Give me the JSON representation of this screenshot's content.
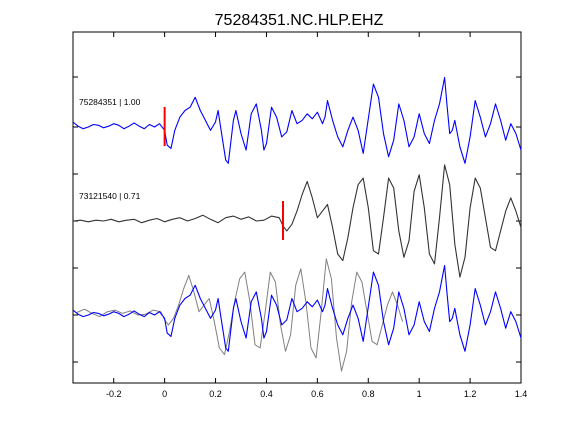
{
  "chart_data": {
    "type": "line",
    "title": "75284351.NC.HLP.EHZ",
    "xlim": [
      -0.36,
      1.4
    ],
    "x_ticks": [
      "-0.2",
      "0",
      "0.2",
      "0.4",
      "0.6",
      "0.8",
      "1",
      "1.2",
      "1.4"
    ],
    "x_tick_values": [
      -0.2,
      0,
      0.2,
      0.4,
      0.6,
      0.8,
      1.0,
      1.2,
      1.4
    ],
    "grid": false,
    "traces": [
      {
        "label": "75284351 | 1.00",
        "color": "#0000ff",
        "pick_time": 0.0,
        "pick_color": "#ff0000",
        "values": [
          [
            -0.36,
            0.3
          ],
          [
            -0.34,
            0.05
          ],
          [
            -0.32,
            -0.1
          ],
          [
            -0.3,
            0.0
          ],
          [
            -0.28,
            0.15
          ],
          [
            -0.26,
            0.1
          ],
          [
            -0.24,
            -0.05
          ],
          [
            -0.22,
            0.05
          ],
          [
            -0.2,
            0.2
          ],
          [
            -0.18,
            0.1
          ],
          [
            -0.16,
            -0.1
          ],
          [
            -0.14,
            0.05
          ],
          [
            -0.12,
            0.25
          ],
          [
            -0.1,
            0.05
          ],
          [
            -0.08,
            -0.1
          ],
          [
            -0.06,
            0.15
          ],
          [
            -0.04,
            0.0
          ],
          [
            -0.02,
            0.2
          ],
          [
            0.0,
            -0.2
          ],
          [
            0.01,
            -1.1
          ],
          [
            0.025,
            -1.3
          ],
          [
            0.04,
            -0.2
          ],
          [
            0.06,
            0.6
          ],
          [
            0.08,
            1.0
          ],
          [
            0.1,
            1.2
          ],
          [
            0.12,
            1.8
          ],
          [
            0.14,
            1.0
          ],
          [
            0.16,
            0.4
          ],
          [
            0.18,
            -0.2
          ],
          [
            0.2,
            0.3
          ],
          [
            0.21,
            1.0
          ],
          [
            0.22,
            0.0
          ],
          [
            0.24,
            -2.0
          ],
          [
            0.25,
            -2.2
          ],
          [
            0.27,
            0.4
          ],
          [
            0.28,
            1.0
          ],
          [
            0.3,
            -0.4
          ],
          [
            0.32,
            -1.4
          ],
          [
            0.34,
            0.8
          ],
          [
            0.36,
            1.4
          ],
          [
            0.38,
            -0.2
          ],
          [
            0.39,
            -1.4
          ],
          [
            0.4,
            -1.0
          ],
          [
            0.42,
            1.2
          ],
          [
            0.44,
            0.6
          ],
          [
            0.46,
            -0.6
          ],
          [
            0.48,
            -0.3
          ],
          [
            0.5,
            1.0
          ],
          [
            0.52,
            0.2
          ],
          [
            0.54,
            0.4
          ],
          [
            0.56,
            0.8
          ],
          [
            0.58,
            0.5
          ],
          [
            0.6,
            0.9
          ],
          [
            0.62,
            0.2
          ],
          [
            0.63,
            0.6
          ],
          [
            0.64,
            1.6
          ],
          [
            0.66,
            0.4
          ],
          [
            0.68,
            -0.6
          ],
          [
            0.7,
            -1.2
          ],
          [
            0.72,
            -0.2
          ],
          [
            0.74,
            0.6
          ],
          [
            0.76,
            -0.2
          ],
          [
            0.78,
            -1.6
          ],
          [
            0.8,
            0.5
          ],
          [
            0.82,
            2.6
          ],
          [
            0.84,
            1.8
          ],
          [
            0.86,
            -0.4
          ],
          [
            0.88,
            -1.8
          ],
          [
            0.9,
            -0.8
          ],
          [
            0.92,
            1.4
          ],
          [
            0.94,
            0.4
          ],
          [
            0.96,
            -1.2
          ],
          [
            0.98,
            -0.6
          ],
          [
            1.0,
            0.8
          ],
          [
            1.02,
            -0.4
          ],
          [
            1.04,
            -1.0
          ],
          [
            1.06,
            0.4
          ],
          [
            1.08,
            1.4
          ],
          [
            1.1,
            3.0
          ],
          [
            1.11,
            1.2
          ],
          [
            1.12,
            -0.4
          ],
          [
            1.13,
            -0.2
          ],
          [
            1.14,
            0.4
          ],
          [
            1.16,
            -1.2
          ],
          [
            1.18,
            -2.2
          ],
          [
            1.2,
            -0.6
          ],
          [
            1.22,
            1.6
          ],
          [
            1.24,
            0.6
          ],
          [
            1.26,
            -0.6
          ],
          [
            1.28,
            0.2
          ],
          [
            1.3,
            1.4
          ],
          [
            1.32,
            0.4
          ],
          [
            1.34,
            -0.8
          ],
          [
            1.36,
            0.2
          ],
          [
            1.38,
            -0.4
          ],
          [
            1.4,
            -1.4
          ]
        ]
      },
      {
        "label": "73121540 | 0.71",
        "color": "#333333",
        "pick_time": 0.465,
        "pick_color": "#ff0000",
        "values": [
          [
            -0.36,
            0.0
          ],
          [
            -0.33,
            0.05
          ],
          [
            -0.3,
            -0.05
          ],
          [
            -0.27,
            0.05
          ],
          [
            -0.24,
            0.0
          ],
          [
            -0.21,
            0.1
          ],
          [
            -0.18,
            -0.05
          ],
          [
            -0.15,
            0.05
          ],
          [
            -0.12,
            0.1
          ],
          [
            -0.09,
            -0.1
          ],
          [
            -0.06,
            0.05
          ],
          [
            -0.03,
            0.15
          ],
          [
            0.0,
            -0.05
          ],
          [
            0.03,
            0.1
          ],
          [
            0.06,
            0.2
          ],
          [
            0.09,
            0.0
          ],
          [
            0.12,
            0.15
          ],
          [
            0.15,
            0.35
          ],
          [
            0.18,
            0.1
          ],
          [
            0.21,
            -0.1
          ],
          [
            0.24,
            0.2
          ],
          [
            0.27,
            0.3
          ],
          [
            0.3,
            0.1
          ],
          [
            0.33,
            0.25
          ],
          [
            0.36,
            0.0
          ],
          [
            0.39,
            0.05
          ],
          [
            0.42,
            0.3
          ],
          [
            0.45,
            0.2
          ],
          [
            0.465,
            -0.3
          ],
          [
            0.48,
            -0.6
          ],
          [
            0.5,
            -0.2
          ],
          [
            0.52,
            0.6
          ],
          [
            0.54,
            1.6
          ],
          [
            0.56,
            2.4
          ],
          [
            0.58,
            1.4
          ],
          [
            0.6,
            0.2
          ],
          [
            0.62,
            0.6
          ],
          [
            0.64,
            1.0
          ],
          [
            0.66,
            -0.4
          ],
          [
            0.68,
            -2.0
          ],
          [
            0.7,
            -2.4
          ],
          [
            0.72,
            -1.0
          ],
          [
            0.74,
            0.8
          ],
          [
            0.76,
            2.2
          ],
          [
            0.78,
            2.6
          ],
          [
            0.8,
            0.8
          ],
          [
            0.82,
            -1.8
          ],
          [
            0.84,
            -2.0
          ],
          [
            0.86,
            0.2
          ],
          [
            0.88,
            2.6
          ],
          [
            0.9,
            2.0
          ],
          [
            0.92,
            -0.6
          ],
          [
            0.94,
            -2.2
          ],
          [
            0.96,
            -1.2
          ],
          [
            0.98,
            1.8
          ],
          [
            1.0,
            2.8
          ],
          [
            1.02,
            0.8
          ],
          [
            1.04,
            -2.0
          ],
          [
            1.06,
            -2.6
          ],
          [
            1.08,
            0.2
          ],
          [
            1.1,
            3.4
          ],
          [
            1.12,
            2.2
          ],
          [
            1.14,
            -1.4
          ],
          [
            1.16,
            -3.4
          ],
          [
            1.18,
            -2.2
          ],
          [
            1.2,
            0.8
          ],
          [
            1.22,
            2.6
          ],
          [
            1.24,
            2.0
          ],
          [
            1.26,
            0.2
          ],
          [
            1.28,
            -1.6
          ],
          [
            1.3,
            -1.8
          ],
          [
            1.32,
            -0.6
          ],
          [
            1.34,
            0.6
          ],
          [
            1.36,
            1.4
          ],
          [
            1.38,
            0.6
          ],
          [
            1.4,
            -0.4
          ]
        ]
      }
    ],
    "overlay_colors": [
      "#0000ff",
      "#808080"
    ]
  }
}
